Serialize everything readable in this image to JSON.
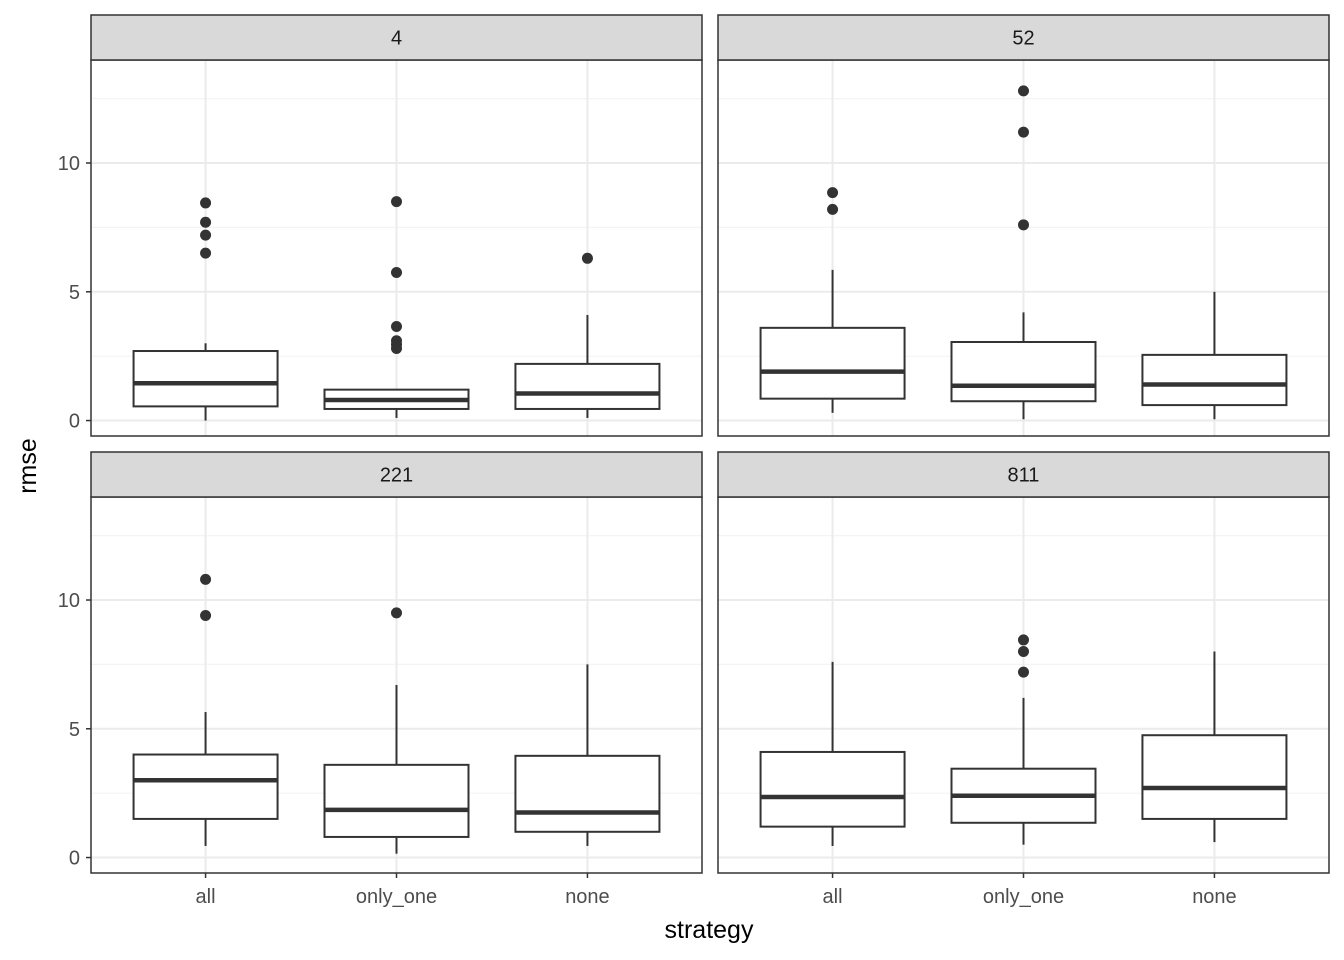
{
  "chart_data": {
    "type": "boxplot",
    "xlabel": "strategy",
    "ylabel": "rmse",
    "categories": [
      "all",
      "only_one",
      "none"
    ],
    "ylim": [
      -0.6,
      14.0
    ],
    "yticks": [
      0,
      5,
      10
    ],
    "grid": true,
    "colors": {
      "box_stroke": "#333333",
      "outlier": "#333333",
      "strip_fill": "#d9d9d9",
      "grid_major": "#ebebeb",
      "grid_minor": "#f4f4f4",
      "panel_border": "#333333"
    },
    "panels": [
      {
        "label": "4",
        "boxes": [
          {
            "category": "all",
            "whisker_low": 0.0,
            "q1": 0.55,
            "median": 1.45,
            "q3": 2.7,
            "whisker_high": 3.0,
            "outliers": [
              8.45,
              7.7,
              7.2,
              6.5
            ]
          },
          {
            "category": "only_one",
            "whisker_low": 0.1,
            "q1": 0.45,
            "median": 0.8,
            "q3": 1.2,
            "whisker_high": 1.2,
            "outliers": [
              8.5,
              5.75,
              3.65,
              3.1,
              2.95,
              2.8
            ]
          },
          {
            "category": "none",
            "whisker_low": 0.1,
            "q1": 0.45,
            "median": 1.05,
            "q3": 2.2,
            "whisker_high": 4.1,
            "outliers": [
              6.3
            ]
          }
        ]
      },
      {
        "label": "52",
        "boxes": [
          {
            "category": "all",
            "whisker_low": 0.3,
            "q1": 0.85,
            "median": 1.9,
            "q3": 3.6,
            "whisker_high": 5.85,
            "outliers": [
              8.85,
              8.2
            ]
          },
          {
            "category": "only_one",
            "whisker_low": 0.05,
            "q1": 0.75,
            "median": 1.35,
            "q3": 3.05,
            "whisker_high": 4.2,
            "outliers": [
              12.8,
              11.2,
              7.6
            ]
          },
          {
            "category": "none",
            "whisker_low": 0.05,
            "q1": 0.6,
            "median": 1.4,
            "q3": 2.55,
            "whisker_high": 5.0,
            "outliers": []
          }
        ]
      },
      {
        "label": "221",
        "boxes": [
          {
            "category": "all",
            "whisker_low": 0.45,
            "q1": 1.5,
            "median": 3.0,
            "q3": 4.0,
            "whisker_high": 5.65,
            "outliers": [
              10.8,
              9.4
            ]
          },
          {
            "category": "only_one",
            "whisker_low": 0.15,
            "q1": 0.8,
            "median": 1.85,
            "q3": 3.6,
            "whisker_high": 6.7,
            "outliers": [
              9.5
            ]
          },
          {
            "category": "none",
            "whisker_low": 0.45,
            "q1": 1.0,
            "median": 1.75,
            "q3": 3.95,
            "whisker_high": 7.5,
            "outliers": []
          }
        ]
      },
      {
        "label": "811",
        "boxes": [
          {
            "category": "all",
            "whisker_low": 0.45,
            "q1": 1.2,
            "median": 2.35,
            "q3": 4.1,
            "whisker_high": 7.6,
            "outliers": []
          },
          {
            "category": "only_one",
            "whisker_low": 0.5,
            "q1": 1.35,
            "median": 2.4,
            "q3": 3.45,
            "whisker_high": 6.2,
            "outliers": [
              8.45,
              8.0,
              7.2
            ]
          },
          {
            "category": "none",
            "whisker_low": 0.6,
            "q1": 1.5,
            "median": 2.7,
            "q3": 4.75,
            "whisker_high": 8.0,
            "outliers": []
          }
        ]
      }
    ]
  }
}
